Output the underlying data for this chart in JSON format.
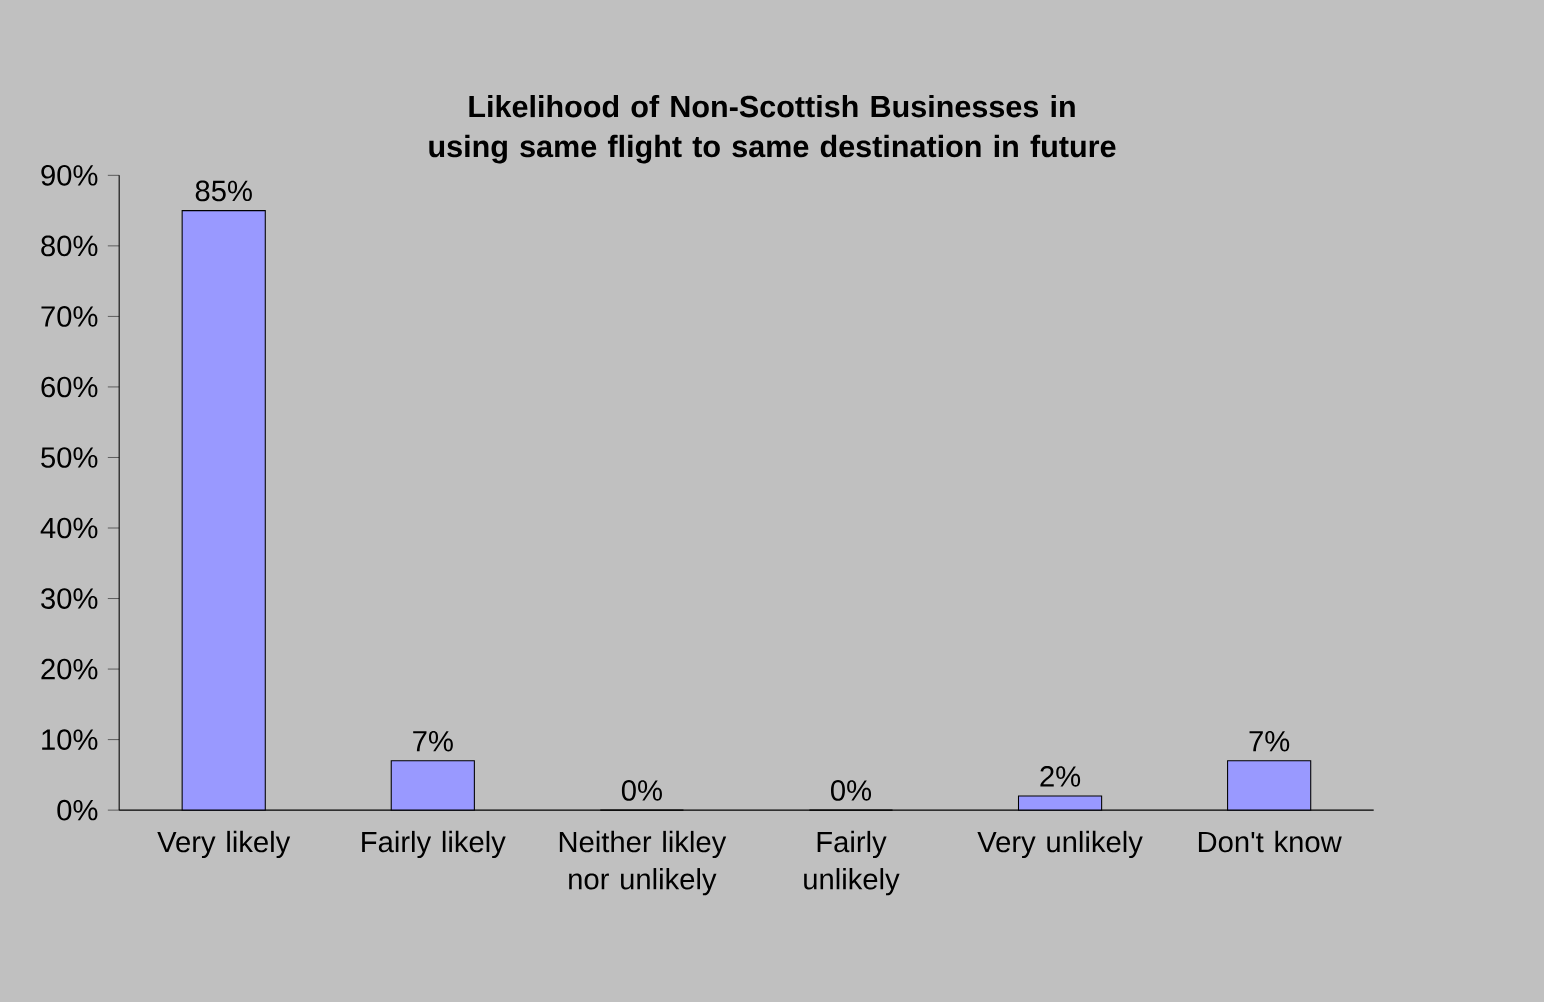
{
  "chart_data": {
    "type": "bar",
    "title": "Likelihood of Non-Scottish Businesses in using same flight to same destination in future",
    "categories": [
      "Very likely",
      "Fairly likely",
      "Neither likley nor unlikely",
      "Fairly unlikely",
      "Very unlikely",
      "Don't know"
    ],
    "values": [
      85,
      7,
      0,
      0,
      2,
      7
    ],
    "value_labels": [
      "85%",
      "7%",
      "0%",
      "0%",
      "2%",
      "7%"
    ],
    "color": "#9999ff",
    "ylim": [
      0,
      90
    ],
    "yticks": [
      {
        "value": 0,
        "label": "0%"
      },
      {
        "value": 10,
        "label": "10%"
      },
      {
        "value": 20,
        "label": "20%"
      },
      {
        "value": 30,
        "label": "30%"
      },
      {
        "value": 40,
        "label": "40%"
      },
      {
        "value": 50,
        "label": "50%"
      },
      {
        "value": 60,
        "label": "60%"
      },
      {
        "value": 70,
        "label": "70%"
      },
      {
        "value": 80,
        "label": "80%"
      },
      {
        "value": 90,
        "label": "90%"
      }
    ]
  }
}
